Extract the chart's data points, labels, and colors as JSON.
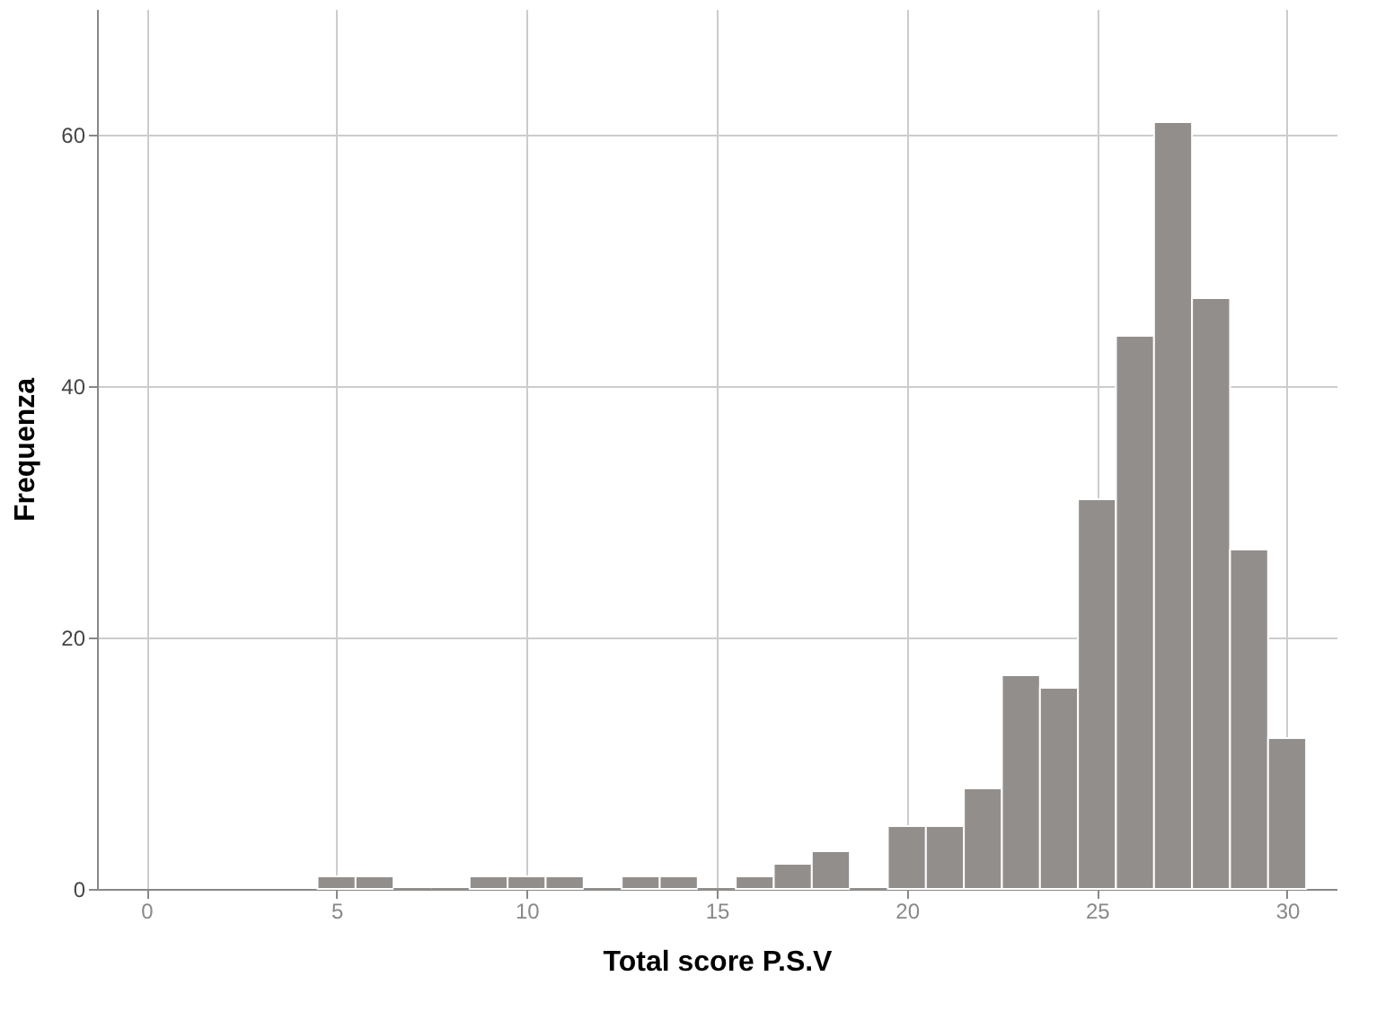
{
  "chart_data": {
    "type": "histogram",
    "xlabel": "Total score P.S.V",
    "ylabel": "Frequenza",
    "bins": [
      4.5,
      5.5,
      6.5,
      7.5,
      8.5,
      9.5,
      10.5,
      11.5,
      12.5,
      13.5,
      14.5,
      15.5,
      16.5,
      17.5,
      18.5,
      19.5,
      20.5,
      21.5,
      22.5,
      23.5,
      24.5,
      25.5,
      26.5,
      27.5,
      28.5,
      29.5,
      30.5
    ],
    "values": [
      1,
      1,
      0,
      0,
      1,
      1,
      1,
      0,
      1,
      1,
      0,
      1,
      2,
      3,
      0,
      5,
      5,
      8,
      17,
      16,
      31,
      44,
      61,
      47,
      27,
      12
    ],
    "color": "#928e8c",
    "xlim": [
      -1.3,
      31.3
    ],
    "xticks": [
      0,
      5,
      10,
      15,
      20,
      25,
      30
    ],
    "ylim": [
      0,
      70
    ],
    "yticks": [
      0,
      20,
      40,
      60
    ],
    "grid": true
  }
}
